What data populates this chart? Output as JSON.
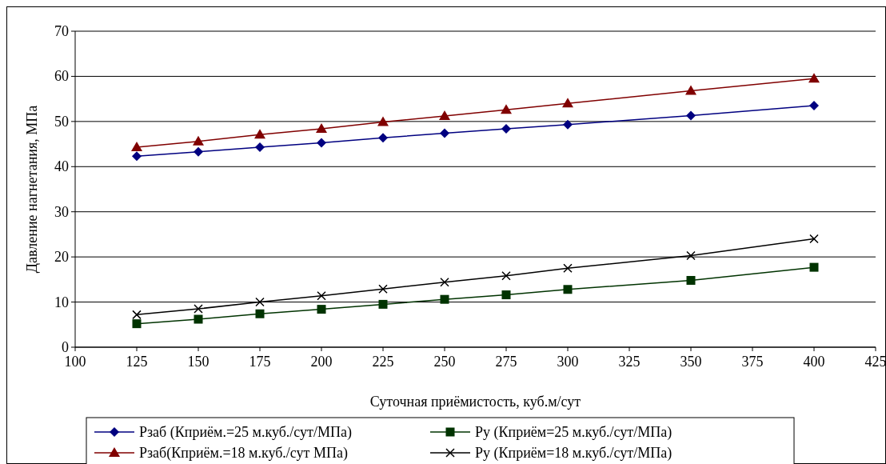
{
  "chart_data": {
    "type": "line",
    "xlabel": "Суточная приёмистость, куб.м/сут",
    "ylabel": "Давление нагнетания, МПа",
    "x": [
      125,
      150,
      175,
      200,
      225,
      250,
      275,
      300,
      350,
      400
    ],
    "xlim": [
      100,
      425
    ],
    "xticks": [
      100,
      125,
      150,
      175,
      200,
      225,
      250,
      275,
      300,
      325,
      350,
      375,
      400,
      425
    ],
    "ylim": [
      0,
      70
    ],
    "yticks": [
      0,
      10,
      20,
      30,
      40,
      50,
      60,
      70
    ],
    "grid": "y",
    "legend": "bottom",
    "series": [
      {
        "name": "Рзаб (Кприём.=25 м.куб./сут/МПа)",
        "color": "#000080",
        "marker": "diamond",
        "values": [
          42.3,
          43.3,
          44.3,
          45.3,
          46.4,
          47.4,
          48.4,
          49.3,
          51.3,
          53.5
        ]
      },
      {
        "name": "Ру (Кприём=25 м.куб./сут/МПа)",
        "color": "#003300",
        "marker": "square",
        "values": [
          5.2,
          6.2,
          7.4,
          8.4,
          9.5,
          10.6,
          11.6,
          12.8,
          14.8,
          17.7
        ]
      },
      {
        "name": "Рзаб(Кприём.=18 м.куб./сут МПа)",
        "color": "#800000",
        "marker": "triangle",
        "values": [
          44.3,
          45.6,
          47.1,
          48.4,
          49.9,
          51.2,
          52.6,
          54.0,
          56.8,
          59.5
        ]
      },
      {
        "name": "Ру (Кприём=18 м.куб./сут/МПа)",
        "color": "#000000",
        "marker": "cross",
        "values": [
          7.2,
          8.5,
          10.0,
          11.4,
          12.9,
          14.4,
          15.8,
          17.5,
          20.3,
          24.0
        ]
      }
    ]
  }
}
